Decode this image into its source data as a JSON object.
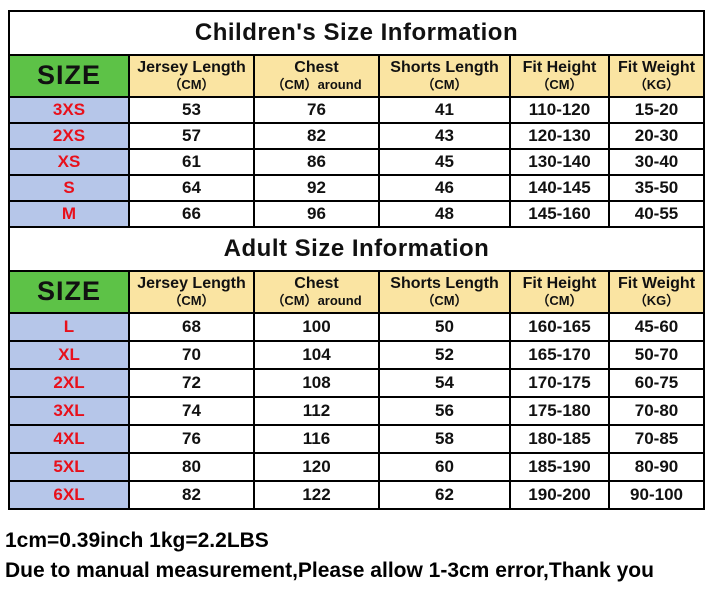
{
  "colors": {
    "header_green": "#5DC247",
    "header_yellow": "#FAE4A2",
    "row_blue": "#B6C6E9",
    "size_red": "#E8101B",
    "border": "#000000"
  },
  "columns": {
    "size_label": "SIZE",
    "cols": [
      {
        "label": "Jersey Length",
        "unit": "（CM）"
      },
      {
        "label": "Chest",
        "unit": "（CM）around"
      },
      {
        "label": "Shorts Length",
        "unit": "（CM）"
      },
      {
        "label": "Fit Height",
        "unit": "（CM）"
      },
      {
        "label": "Fit Weight",
        "unit": "（KG）"
      }
    ]
  },
  "children": {
    "title": "Children's Size Information",
    "rows": [
      {
        "size": "3XS",
        "values": [
          "53",
          "76",
          "41",
          "110-120",
          "15-20"
        ]
      },
      {
        "size": "2XS",
        "values": [
          "57",
          "82",
          "43",
          "120-130",
          "20-30"
        ]
      },
      {
        "size": "XS",
        "values": [
          "61",
          "86",
          "45",
          "130-140",
          "30-40"
        ]
      },
      {
        "size": "S",
        "values": [
          "64",
          "92",
          "46",
          "140-145",
          "35-50"
        ]
      },
      {
        "size": "M",
        "values": [
          "66",
          "96",
          "48",
          "145-160",
          "40-55"
        ]
      }
    ]
  },
  "adult": {
    "title": "Adult Size Information",
    "rows": [
      {
        "size": "L",
        "values": [
          "68",
          "100",
          "50",
          "160-165",
          "45-60"
        ]
      },
      {
        "size": "XL",
        "values": [
          "70",
          "104",
          "52",
          "165-170",
          "50-70"
        ]
      },
      {
        "size": "2XL",
        "values": [
          "72",
          "108",
          "54",
          "170-175",
          "60-75"
        ]
      },
      {
        "size": "3XL",
        "values": [
          "74",
          "112",
          "56",
          "175-180",
          "70-80"
        ]
      },
      {
        "size": "4XL",
        "values": [
          "76",
          "116",
          "58",
          "180-185",
          "70-85"
        ]
      },
      {
        "size": "5XL",
        "values": [
          "80",
          "120",
          "60",
          "185-190",
          "80-90"
        ]
      },
      {
        "size": "6XL",
        "values": [
          "82",
          "122",
          "62",
          "190-200",
          "90-100"
        ]
      }
    ]
  },
  "footer": {
    "line1": "1cm=0.39inch 1kg=2.2LBS",
    "line2": "Due to manual measurement,Please allow 1-3cm error,Thank you"
  }
}
